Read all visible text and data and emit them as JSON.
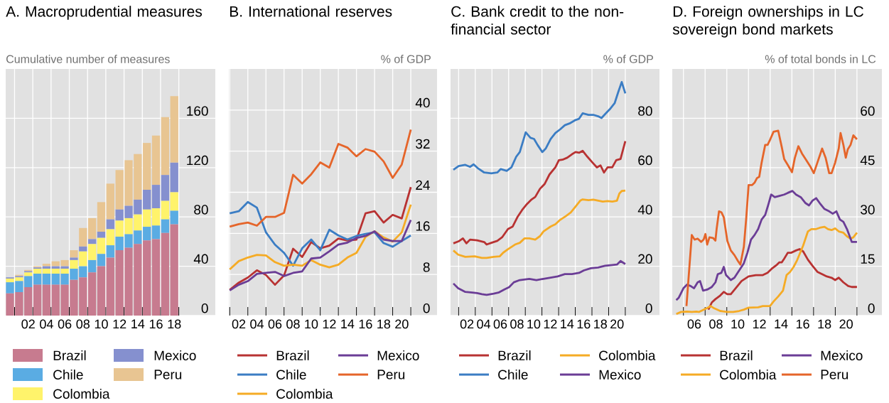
{
  "chart_data": [
    {
      "type": "bar",
      "title": "A. Macroprudential measures",
      "ylabel": "Cumulative number of measures",
      "stacked": true,
      "grid": true,
      "legend": "bottom",
      "categories": [
        null,
        null,
        "02",
        null,
        "04",
        null,
        "06",
        null,
        "08",
        null,
        "10",
        null,
        "12",
        null,
        "14",
        null,
        "16",
        null,
        "18"
      ],
      "ylim": [
        0,
        200
      ],
      "yticks": [
        0,
        40,
        80,
        120,
        160
      ],
      "series": [
        {
          "name": "Brazil",
          "color": "#c77b8f",
          "values": [
            18,
            19,
            23,
            25,
            25,
            25,
            25,
            29,
            31,
            35,
            40,
            47,
            53,
            55,
            58,
            61,
            62,
            67,
            74
          ]
        },
        {
          "name": "Chile",
          "color": "#5aace3",
          "values": [
            9,
            9,
            9,
            9,
            9,
            9,
            9,
            9,
            9,
            10,
            10,
            10,
            11,
            11,
            11,
            11,
            11,
            11,
            11
          ]
        },
        {
          "name": "Colombia",
          "color": "#fff36b",
          "values": [
            3,
            3,
            3,
            4,
            4,
            4,
            4,
            7,
            12,
            13,
            13,
            13,
            13,
            13,
            13,
            14,
            14,
            15,
            15
          ]
        },
        {
          "name": "Mexico",
          "color": "#8590cf",
          "values": [
            1,
            1,
            1,
            1,
            2,
            2,
            2,
            2,
            4,
            4,
            5,
            8,
            9,
            10,
            12,
            16,
            19,
            21,
            24
          ]
        },
        {
          "name": "Peru",
          "color": "#e8c592",
          "values": [
            0,
            1,
            1,
            1,
            2,
            4,
            5,
            6,
            15,
            17,
            24,
            29,
            32,
            37,
            37,
            38,
            40,
            47,
            54
          ]
        }
      ]
    },
    {
      "type": "line",
      "title": "B. International reserves",
      "ylabel": "% of GDP",
      "grid": true,
      "legend": "bottom",
      "x": [
        2001,
        2002,
        2003,
        2004,
        2005,
        2006,
        2007,
        2008,
        2009,
        2010,
        2011,
        2012,
        2013,
        2014,
        2015,
        2016,
        2017,
        2018,
        2019,
        2020,
        2021
      ],
      "xlim": [
        2000.9,
        2023.9
      ],
      "ylim": [
        0,
        48
      ],
      "yticks": [
        0,
        8,
        16,
        24,
        32,
        40
      ],
      "xticks": [
        {
          "value": 2001,
          "label": null
        },
        {
          "value": 2002,
          "label": "02"
        },
        {
          "value": 2003,
          "label": null
        },
        {
          "value": 2004,
          "label": "04"
        },
        {
          "value": 2005,
          "label": null
        },
        {
          "value": 2006,
          "label": "06"
        },
        {
          "value": 2007,
          "label": null
        },
        {
          "value": 2008,
          "label": "08"
        },
        {
          "value": 2009,
          "label": null
        },
        {
          "value": 2010,
          "label": "10"
        },
        {
          "value": 2011,
          "label": null
        },
        {
          "value": 2012,
          "label": "12"
        },
        {
          "value": 2013,
          "label": null
        },
        {
          "value": 2014,
          "label": "14"
        },
        {
          "value": 2015,
          "label": null
        },
        {
          "value": 2016,
          "label": "16"
        },
        {
          "value": 2017,
          "label": null
        },
        {
          "value": 2018,
          "label": "18"
        },
        {
          "value": 2019,
          "label": null
        },
        {
          "value": 2020,
          "label": "20"
        },
        {
          "value": 2021,
          "label": null
        }
      ],
      "series": [
        {
          "name": "Brazil",
          "color": "#b83232",
          "values": [
            5.0,
            6.4,
            7.4,
            8.8,
            7.9,
            6.0,
            7.8,
            13.0,
            11.4,
            14.3,
            13.1,
            13.6,
            15.0,
            14.6,
            14.8,
            19.9,
            20.3,
            18.1,
            19.6,
            18.9,
            25.0
          ]
        },
        {
          "name": "Chile",
          "color": "#3b7dc4",
          "values": [
            19.9,
            20.3,
            22.1,
            21.0,
            16.2,
            13.8,
            12.2,
            9.7,
            13.1,
            14.8,
            12.7,
            16.7,
            15.6,
            14.8,
            15.5,
            15.9,
            16.2,
            14.1,
            13.4,
            14.5,
            15.6
          ]
        },
        {
          "name": "Colombia",
          "color": "#f5ab25",
          "values": [
            9.0,
            10.6,
            11.3,
            11.8,
            11.7,
            10.4,
            9.7,
            9.9,
            9.7,
            10.8,
            9.9,
            9.4,
            9.9,
            11.3,
            12.2,
            15.3,
            16.4,
            15.2,
            14.4,
            16.2,
            21.6
          ]
        },
        {
          "name": "Mexico",
          "color": "#6b3d96",
          "values": [
            4.9,
            6.0,
            6.7,
            8.1,
            8.3,
            8.5,
            7.7,
            8.3,
            8.6,
            11.1,
            11.3,
            12.5,
            13.8,
            14.2,
            15.1,
            15.5,
            16.4,
            14.8,
            14.5,
            14.5,
            18.6
          ]
        },
        {
          "name": "Peru",
          "color": "#e5652a",
          "values": [
            17.3,
            17.8,
            18.1,
            17.5,
            19.2,
            19.2,
            20.0,
            27.4,
            25.7,
            27.5,
            29.8,
            28.8,
            33.4,
            32.7,
            31.0,
            32.4,
            31.9,
            30.0,
            26.8,
            29.4,
            36.2
          ]
        }
      ]
    },
    {
      "type": "line",
      "title": "C. Bank credit to the non-financial sector",
      "ylabel": "% of GDP",
      "grid": true,
      "legend": "bottom",
      "xlim": [
        2000.03,
        2025.1
      ],
      "ylim": [
        0,
        100
      ],
      "yticks": [
        0,
        20,
        40,
        60,
        80
      ],
      "xticks": [
        {
          "value": 2001,
          "label": null
        },
        {
          "value": 2002,
          "label": "02"
        },
        {
          "value": 2003,
          "label": null
        },
        {
          "value": 2004,
          "label": "04"
        },
        {
          "value": 2005,
          "label": null
        },
        {
          "value": 2006,
          "label": "06"
        },
        {
          "value": 2007,
          "label": null
        },
        {
          "value": 2008,
          "label": "08"
        },
        {
          "value": 2009,
          "label": null
        },
        {
          "value": 2010,
          "label": "10"
        },
        {
          "value": 2011,
          "label": null
        },
        {
          "value": 2012,
          "label": "12"
        },
        {
          "value": 2013,
          "label": null
        },
        {
          "value": 2014,
          "label": "14"
        },
        {
          "value": 2015,
          "label": null
        },
        {
          "value": 2016,
          "label": "16"
        },
        {
          "value": 2017,
          "label": null
        },
        {
          "value": 2018,
          "label": "18"
        },
        {
          "value": 2019,
          "label": null
        },
        {
          "value": 2020,
          "label": "20"
        },
        {
          "value": 2021,
          "label": null
        }
      ],
      "series": [
        {
          "name": "Brazil",
          "color": "#b83232",
          "x": [
            2000.37,
            2001.0,
            2001.51,
            2001.94,
            2002.37,
            2003.22,
            2004.07,
            2004.36,
            2004.93,
            2005.64,
            2006.21,
            2006.92,
            2007.49,
            2008.05,
            2008.62,
            2009.19,
            2009.76,
            2010.19,
            2010.76,
            2011.33,
            2011.9,
            2012.61,
            2013.03,
            2013.46,
            2014.03,
            2014.6,
            2015.03,
            2015.45,
            2015.88,
            2016.45,
            2017.02,
            2017.59,
            2018.02,
            2018.44,
            2018.87,
            2019.44,
            2019.91,
            2020.43,
            2021.0
          ],
          "values": [
            29.3,
            30.1,
            31.3,
            29.3,
            30.8,
            30.5,
            29.8,
            28.8,
            29.5,
            30.3,
            31.7,
            35.1,
            36.1,
            39.9,
            42.8,
            45.2,
            47.1,
            48.1,
            51.4,
            53.4,
            57.2,
            60.1,
            63.0,
            63.2,
            64.0,
            65.4,
            66.3,
            66.0,
            66.8,
            64.4,
            62.2,
            60.1,
            60.9,
            58.0,
            60.1,
            60.1,
            63.0,
            63.5,
            70.7
          ]
        },
        {
          "name": "Chile",
          "color": "#3b7dc4",
          "x": [
            2000.37,
            2001.0,
            2001.8,
            2002.37,
            2002.8,
            2003.36,
            2004.07,
            2004.93,
            2005.64,
            2006.06,
            2006.77,
            2007.34,
            2007.91,
            2008.34,
            2009.05,
            2009.62,
            2010.05,
            2010.47,
            2011.04,
            2011.47,
            2012.04,
            2012.61,
            2013.18,
            2013.75,
            2014.31,
            2015.03,
            2015.45,
            2015.88,
            2016.59,
            2017.16,
            2017.73,
            2018.15,
            2018.58,
            2019.15,
            2019.72,
            2020.14,
            2020.57,
            2021.0
          ],
          "values": [
            59.1,
            60.6,
            61.1,
            60.3,
            61.3,
            59.6,
            58.0,
            57.7,
            58.0,
            59.4,
            58.7,
            60.1,
            64.4,
            66.3,
            74.3,
            72.1,
            71.6,
            69.2,
            66.3,
            67.8,
            71.6,
            74.0,
            75.5,
            77.2,
            77.9,
            79.3,
            79.8,
            82.0,
            81.4,
            81.4,
            80.8,
            80.1,
            81.7,
            83.7,
            86.1,
            90.5,
            94.7,
            90.1
          ]
        },
        {
          "name": "Colombia",
          "color": "#f5ab25",
          "x": [
            2000.37,
            2000.94,
            2001.8,
            2002.93,
            2003.79,
            2004.36,
            2005.21,
            2005.92,
            2006.35,
            2006.92,
            2007.77,
            2008.34,
            2008.91,
            2009.48,
            2010.19,
            2010.76,
            2011.18,
            2012.04,
            2012.61,
            2013.18,
            2013.89,
            2014.46,
            2015.03,
            2015.59,
            2015.88,
            2016.59,
            2017.16,
            2017.73,
            2018.3,
            2018.87,
            2019.44,
            2020.0,
            2020.29,
            2020.57,
            2021.0
          ],
          "values": [
            26.4,
            24.7,
            23.8,
            24.0,
            23.4,
            23.4,
            23.8,
            24.0,
            25.5,
            26.9,
            28.8,
            29.5,
            31.3,
            31.3,
            30.8,
            32.2,
            34.1,
            36.1,
            37.0,
            38.8,
            40.4,
            41.8,
            44.2,
            46.6,
            47.1,
            46.8,
            47.0,
            46.6,
            46.2,
            46.4,
            46.2,
            46.6,
            49.5,
            50.5,
            50.7
          ]
        },
        {
          "name": "Mexico",
          "color": "#6b3d96",
          "x": [
            2000.37,
            2000.94,
            2001.8,
            2002.65,
            2003.22,
            2003.79,
            2004.36,
            2005.21,
            2005.78,
            2006.49,
            2007.06,
            2007.63,
            2008.34,
            2009.48,
            2010.33,
            2011.18,
            2012.04,
            2012.89,
            2013.75,
            2014.6,
            2015.45,
            2016.02,
            2016.87,
            2017.73,
            2018.58,
            2019.44,
            2020.0,
            2020.43,
            2021.0
          ],
          "values": [
            13.0,
            11.1,
            9.6,
            9.3,
            9.1,
            8.7,
            8.4,
            8.9,
            9.3,
            10.6,
            11.5,
            13.5,
            14.4,
            14.9,
            14.4,
            14.9,
            15.4,
            15.9,
            16.8,
            16.8,
            17.3,
            18.3,
            19.2,
            19.5,
            20.2,
            20.5,
            20.7,
            22.1,
            20.9
          ]
        }
      ]
    },
    {
      "type": "line",
      "title": "D. Foreign ownerships in LC sovereign bond markets",
      "ylabel": "% of total bonds in LC",
      "grid": true,
      "legend": "bottom",
      "xlim": [
        2003.97,
        2023.3
      ],
      "ylim": [
        0,
        75
      ],
      "yticks": [
        0,
        15,
        30,
        45,
        60
      ],
      "xticks": [
        {
          "value": 2005,
          "label": null
        },
        {
          "value": 2006,
          "label": "06"
        },
        {
          "value": 2007,
          "label": null
        },
        {
          "value": 2008,
          "label": "08"
        },
        {
          "value": 2009,
          "label": null
        },
        {
          "value": 2010,
          "label": "10"
        },
        {
          "value": 2011,
          "label": null
        },
        {
          "value": 2012,
          "label": "12"
        },
        {
          "value": 2013,
          "label": null
        },
        {
          "value": 2014,
          "label": "14"
        },
        {
          "value": 2015,
          "label": null
        },
        {
          "value": 2016,
          "label": "16"
        },
        {
          "value": 2017,
          "label": null
        },
        {
          "value": 2018,
          "label": "18"
        },
        {
          "value": 2019,
          "label": null
        },
        {
          "value": 2020,
          "label": "20"
        },
        {
          "value": 2021,
          "label": null
        }
      ],
      "series": [
        {
          "name": "Brazil",
          "color": "#b83232",
          "x": [
            2007.3,
            2007.62,
            2007.95,
            2008.39,
            2008.72,
            2009.04,
            2009.37,
            2009.92,
            2010.36,
            2011.01,
            2011.67,
            2012.32,
            2012.76,
            2013.2,
            2013.63,
            2013.85,
            2014.07,
            2014.29,
            2014.62,
            2014.95,
            2015.38,
            2015.71,
            2016.04,
            2016.48,
            2016.91,
            2017.35,
            2017.79,
            2018.22,
            2018.66,
            2018.99,
            2019.32,
            2019.75,
            2020.19,
            2020.52,
            2021.0
          ],
          "values": [
            1.8,
            4.0,
            5.0,
            6.1,
            7.2,
            6.5,
            6.5,
            8.7,
            10.5,
            11.9,
            12.3,
            12.3,
            13.0,
            14.4,
            15.5,
            16.2,
            16.2,
            17.3,
            19.1,
            19.1,
            19.8,
            20.2,
            19.5,
            17.0,
            15.1,
            13.3,
            12.6,
            11.9,
            11.5,
            10.8,
            11.5,
            10.1,
            9.0,
            8.7,
            8.7
          ]
        },
        {
          "name": "Colombia",
          "color": "#f5ab25",
          "x": [
            2004.34,
            2004.78,
            2005.33,
            2005.77,
            2006.2,
            2006.42,
            2006.86,
            2007.3,
            2007.51,
            2007.84,
            2008.39,
            2009.04,
            2009.59,
            2010.14,
            2010.57,
            2011.01,
            2011.89,
            2012.32,
            2012.98,
            2013.31,
            2013.74,
            2014.18,
            2014.51,
            2014.84,
            2015.16,
            2015.49,
            2016.04,
            2016.48,
            2016.8,
            2017.24,
            2017.57,
            2018.01,
            2018.33,
            2018.66,
            2018.99,
            2019.32,
            2019.75,
            2020.08,
            2020.41,
            2020.67,
            2021.0
          ],
          "values": [
            0.5,
            1.1,
            1.2,
            1.1,
            1.2,
            1.1,
            1.8,
            2.5,
            2.9,
            2.2,
            1.4,
            1.1,
            1.1,
            1.4,
            1.8,
            2.4,
            2.5,
            2.9,
            2.9,
            4.3,
            5.8,
            7.6,
            12.3,
            13.3,
            14.8,
            16.9,
            21.3,
            25.6,
            26.3,
            26.3,
            26.7,
            27.0,
            26.3,
            26.0,
            26.5,
            25.6,
            25.2,
            24.1,
            23.4,
            23.8,
            25.2
          ]
        },
        {
          "name": "Mexico",
          "color": "#6b3d96",
          "x": [
            2004.34,
            2004.56,
            2005.0,
            2005.33,
            2005.66,
            2005.98,
            2006.31,
            2006.53,
            2006.81,
            2007.19,
            2007.62,
            2007.95,
            2008.17,
            2008.5,
            2008.72,
            2008.93,
            2009.37,
            2009.7,
            2010.14,
            2010.57,
            2010.9,
            2011.23,
            2011.56,
            2011.89,
            2012.21,
            2012.54,
            2012.87,
            2013.09,
            2013.42,
            2013.85,
            2014.29,
            2014.62,
            2015.05,
            2015.38,
            2015.82,
            2016.26,
            2016.58,
            2016.91,
            2017.24,
            2017.57,
            2018.01,
            2018.44,
            2018.77,
            2019.1,
            2019.43,
            2019.75,
            2020.08,
            2020.52,
            2020.74,
            2021.0
          ],
          "values": [
            4.7,
            5.4,
            8.3,
            9.4,
            9.0,
            8.3,
            10.1,
            10.5,
            7.6,
            7.9,
            8.7,
            10.1,
            12.6,
            13.0,
            14.8,
            12.3,
            10.8,
            11.5,
            13.7,
            15.9,
            19.1,
            23.1,
            24.5,
            26.3,
            29.2,
            30.6,
            34.2,
            36.8,
            36.0,
            36.4,
            36.8,
            37.3,
            37.9,
            36.8,
            36.0,
            34.2,
            33.5,
            35.0,
            35.7,
            34.2,
            32.4,
            31.7,
            31.0,
            31.7,
            29.2,
            28.5,
            26.3,
            22.4,
            22.4,
            22.4
          ]
        },
        {
          "name": "Peru",
          "color": "#e5652a",
          "x": [
            2005.28,
            2005.77,
            2006.03,
            2006.31,
            2006.64,
            2006.86,
            2007.03,
            2007.19,
            2007.4,
            2007.73,
            2007.95,
            2008.06,
            2008.28,
            2008.5,
            2008.72,
            2009.05,
            2009.37,
            2009.7,
            2010.03,
            2010.25,
            2010.57,
            2010.79,
            2011.01,
            2011.34,
            2011.56,
            2011.78,
            2011.99,
            2012.21,
            2012.54,
            2012.76,
            2013.02,
            2013.31,
            2013.74,
            2014.07,
            2014.29,
            2014.62,
            2015.01,
            2015.27,
            2015.6,
            2015.93,
            2016.26,
            2016.69,
            2017.02,
            2017.35,
            2017.79,
            2018.11,
            2018.44,
            2018.66,
            2018.99,
            2019.32,
            2019.49,
            2019.75,
            2019.97,
            2020.15,
            2020.41,
            2020.67,
            2021.0
          ],
          "values": [
            2.9,
            24.5,
            23.1,
            23.4,
            22.4,
            23.1,
            24.8,
            21.6,
            23.8,
            23.6,
            22.8,
            26.3,
            31.7,
            31.4,
            29.9,
            22.7,
            19.8,
            18.4,
            16.6,
            15.5,
            20.9,
            29.6,
            39.7,
            39.7,
            40.4,
            41.8,
            42.2,
            46.5,
            51.9,
            51.9,
            53.7,
            55.9,
            56.2,
            51.2,
            47.6,
            45.8,
            43.6,
            47.9,
            51.5,
            49.3,
            47.6,
            45.4,
            43.3,
            46.5,
            50.8,
            48.0,
            43.3,
            43.3,
            46.5,
            50.8,
            55.5,
            51.9,
            48.0,
            50.5,
            51.9,
            54.8,
            53.6
          ]
        }
      ]
    }
  ]
}
